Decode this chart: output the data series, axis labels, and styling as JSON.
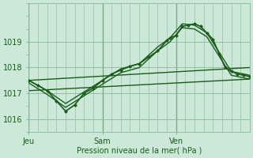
{
  "bg_color": "#cce8d8",
  "grid_color": "#88b898",
  "line_color": "#1a5c1a",
  "xlabel": "Pression niveau de la mer( hPa )",
  "ylim": [
    1015.5,
    1020.5
  ],
  "yticks": [
    1016,
    1017,
    1018,
    1019
  ],
  "day_labels": [
    "Jeu",
    "Sam",
    "Ven"
  ],
  "day_positions": [
    0,
    24,
    48
  ],
  "total_hours": 72,
  "series": [
    {
      "x": [
        0,
        72
      ],
      "y": [
        1017.5,
        1018.0
      ],
      "lw": 1.0,
      "marker": null
    },
    {
      "x": [
        0,
        72
      ],
      "y": [
        1017.1,
        1017.55
      ],
      "lw": 1.0,
      "marker": null
    },
    {
      "x": [
        0,
        6,
        12,
        18,
        24,
        30,
        36,
        42,
        46,
        50,
        54,
        58,
        62,
        66,
        70,
        72
      ],
      "y": [
        1017.5,
        1017.1,
        1016.6,
        1017.05,
        1017.5,
        1017.95,
        1018.15,
        1018.8,
        1019.15,
        1019.7,
        1019.65,
        1019.35,
        1018.6,
        1017.85,
        1017.75,
        1017.7
      ],
      "lw": 1.0,
      "marker": null
    },
    {
      "x": [
        0,
        6,
        12,
        18,
        24,
        30,
        36,
        42,
        46,
        50,
        54,
        58,
        62,
        66,
        70,
        72
      ],
      "y": [
        1017.4,
        1016.95,
        1016.45,
        1016.9,
        1017.35,
        1017.8,
        1018.0,
        1018.65,
        1019.0,
        1019.55,
        1019.5,
        1019.2,
        1018.45,
        1017.7,
        1017.6,
        1017.55
      ],
      "lw": 1.0,
      "marker": null
    },
    {
      "x": [
        0,
        3,
        6,
        9,
        12,
        15,
        18,
        21,
        24,
        27,
        30,
        33,
        36,
        39,
        42,
        45,
        46,
        48,
        50,
        52,
        54,
        56,
        58,
        60,
        62,
        64,
        66,
        68,
        70,
        72
      ],
      "y": [
        1017.5,
        1017.3,
        1017.1,
        1016.7,
        1016.3,
        1016.55,
        1017.0,
        1017.2,
        1017.5,
        1017.75,
        1017.9,
        1018.05,
        1018.15,
        1018.4,
        1018.65,
        1019.05,
        1019.15,
        1019.25,
        1019.6,
        1019.65,
        1019.7,
        1019.6,
        1019.35,
        1019.1,
        1018.55,
        1018.0,
        1017.85,
        1017.75,
        1017.7,
        1017.65
      ],
      "lw": 1.2,
      "marker": "D"
    }
  ]
}
